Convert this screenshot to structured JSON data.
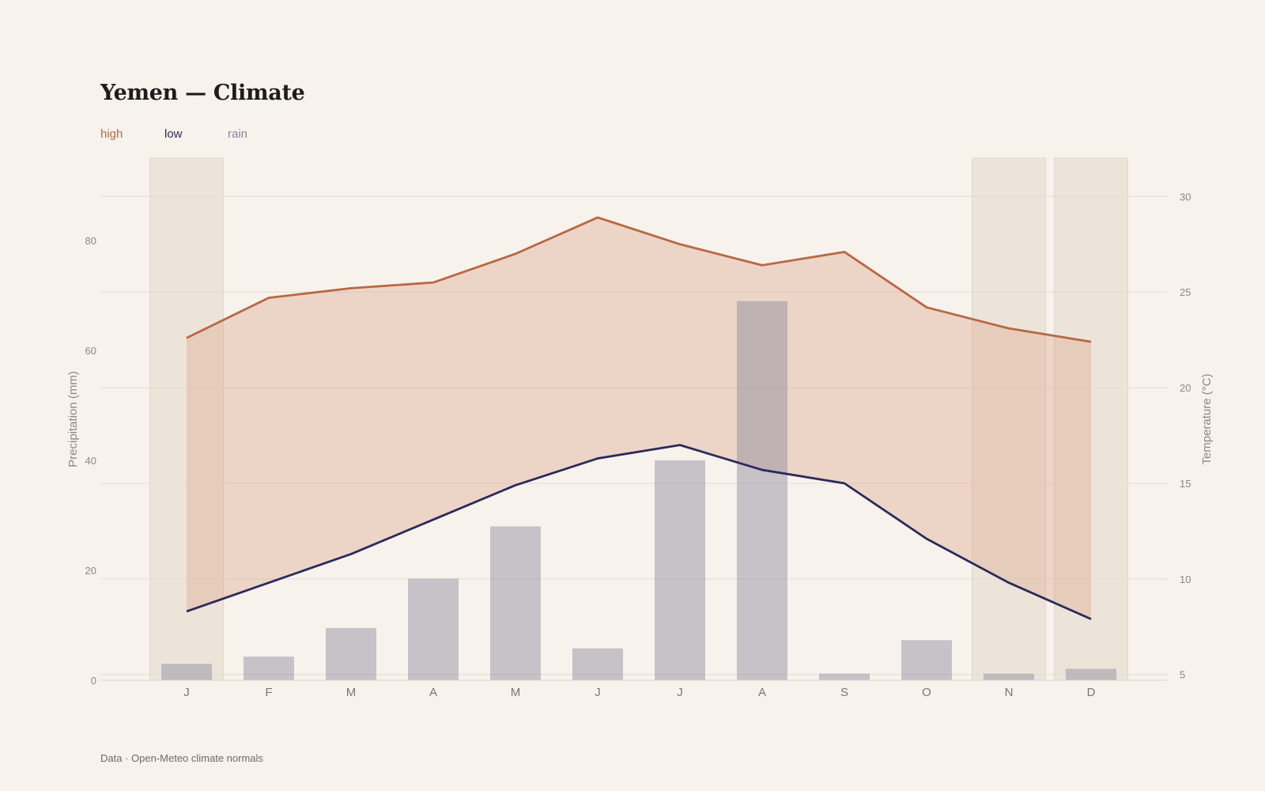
{
  "title": "Yemen — Climate",
  "legend": {
    "high": "high",
    "low": "low",
    "rain": "rain"
  },
  "footer": "Data · Open-Meteo climate normals",
  "colors": {
    "high": "#b86844",
    "low": "#2c2a5c",
    "rain": "#8a879c",
    "background": "#f7f2ec",
    "range_fill": "#e9d5ca",
    "month_highlight": "#ede4d9"
  },
  "chart_data": {
    "type": "bar+line",
    "categories": [
      "J",
      "F",
      "M",
      "A",
      "M",
      "J",
      "J",
      "A",
      "S",
      "O",
      "N",
      "D"
    ],
    "highlighted_months": [
      0,
      10,
      11
    ],
    "series": [
      {
        "name": "rain",
        "type": "bar",
        "axis": "left",
        "values": [
          3,
          4.3,
          9.5,
          18.5,
          28,
          5.8,
          40,
          69,
          1.2,
          7.3,
          1.2,
          2.1
        ]
      },
      {
        "name": "high",
        "type": "line",
        "axis": "right",
        "values": [
          22.6,
          24.7,
          25.2,
          25.5,
          27,
          28.9,
          27.5,
          26.4,
          27.1,
          24.2,
          23.1,
          22.4
        ]
      },
      {
        "name": "low",
        "type": "line",
        "axis": "right",
        "values": [
          8.3,
          9.8,
          11.3,
          13.1,
          14.9,
          16.3,
          17,
          15.7,
          15,
          12.1,
          9.8,
          7.9
        ]
      }
    ],
    "y_left": {
      "label": "Precipitation (mm)",
      "ticks": [
        0,
        20,
        40,
        60,
        80
      ],
      "range": [
        0,
        95
      ]
    },
    "y_right": {
      "label": "Temperature (°C)",
      "ticks": [
        5,
        10,
        15,
        20,
        25,
        30
      ],
      "range": [
        4.7,
        32
      ]
    },
    "grid": true
  }
}
